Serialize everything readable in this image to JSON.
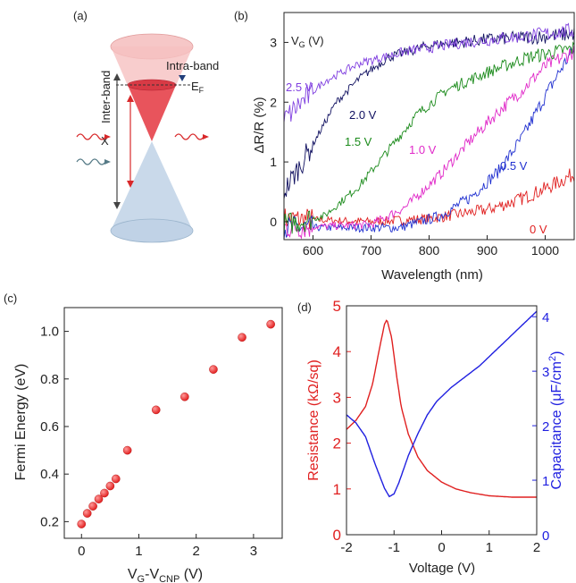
{
  "panels": {
    "a": {
      "label": "(a)",
      "inter_band": "Inter-band",
      "intra_band": "Intra-band",
      "fermi": "E",
      "fermi_sub": "F",
      "x_mark": "X",
      "colors": {
        "upper_cone": "#f4b6b6",
        "filled": "#e8545c",
        "lower_cone": "#c9d9ea",
        "wave_red": "#d8282a",
        "wave_grey": "#557a86"
      }
    },
    "b": {
      "label": "(b)",
      "legend_title": "V",
      "legend_title_sub": "G",
      "legend_title_unit": " (V)"
    },
    "c": {
      "label": "(c)"
    },
    "d": {
      "label": "(d)"
    }
  },
  "chart_data": [
    {
      "type": "line",
      "panel": "b",
      "xlabel": "Wavelength (nm)",
      "ylabel": "ΔR/R (%)",
      "xlim": [
        550,
        1050
      ],
      "ylim": [
        -0.3,
        3.5
      ],
      "xticks": [
        600,
        700,
        800,
        900,
        1000
      ],
      "yticks": [
        0,
        1,
        2,
        3
      ],
      "series": [
        {
          "name": "0 V",
          "color": "#e02020",
          "points": [
            [
              550,
              0.05
            ],
            [
              700,
              0.0
            ],
            [
              800,
              0.05
            ],
            [
              900,
              0.2
            ],
            [
              950,
              0.35
            ],
            [
              1000,
              0.55
            ],
            [
              1050,
              0.8
            ]
          ]
        },
        {
          "name": "0.5 V",
          "color": "#2030d0",
          "points": [
            [
              550,
              -0.1
            ],
            [
              750,
              -0.1
            ],
            [
              820,
              0.1
            ],
            [
              870,
              0.4
            ],
            [
              920,
              0.85
            ],
            [
              960,
              1.4
            ],
            [
              1000,
              2.1
            ],
            [
              1030,
              2.6
            ],
            [
              1050,
              2.9
            ]
          ]
        },
        {
          "name": "1.0 V",
          "color": "#e028c8",
          "points": [
            [
              550,
              -0.1
            ],
            [
              700,
              -0.05
            ],
            [
              760,
              0.25
            ],
            [
              820,
              0.8
            ],
            [
              870,
              1.35
            ],
            [
              920,
              1.85
            ],
            [
              960,
              2.2
            ],
            [
              1000,
              2.6
            ],
            [
              1050,
              2.85
            ]
          ]
        },
        {
          "name": "1.5 V",
          "color": "#1a8a1a",
          "points": [
            [
              550,
              -0.05
            ],
            [
              620,
              0.1
            ],
            [
              680,
              0.6
            ],
            [
              730,
              1.2
            ],
            [
              780,
              1.8
            ],
            [
              830,
              2.2
            ],
            [
              900,
              2.5
            ],
            [
              970,
              2.75
            ],
            [
              1050,
              2.9
            ]
          ]
        },
        {
          "name": "2.0 V",
          "color": "#101060",
          "points": [
            [
              550,
              0.5
            ],
            [
              600,
              1.3
            ],
            [
              640,
              2.0
            ],
            [
              680,
              2.4
            ],
            [
              730,
              2.75
            ],
            [
              800,
              2.95
            ],
            [
              900,
              3.05
            ],
            [
              1000,
              3.1
            ],
            [
              1050,
              3.15
            ]
          ]
        },
        {
          "name": "2.5 V",
          "color": "#8040e0",
          "points": [
            [
              550,
              1.7
            ],
            [
              580,
              2.0
            ],
            [
              620,
              2.35
            ],
            [
              680,
              2.65
            ],
            [
              760,
              2.85
            ],
            [
              860,
              3.0
            ],
            [
              960,
              3.1
            ],
            [
              1050,
              3.2
            ]
          ]
        }
      ]
    },
    {
      "type": "scatter",
      "panel": "c",
      "xlabel": "V",
      "xlabel_sub": "G",
      "xlabel_mid": "-V",
      "xlabel_sub2": "CNP",
      "xlabel_unit": " (V)",
      "ylabel": "Fermi Energy (eV)",
      "xlim": [
        -0.3,
        3.5
      ],
      "ylim": [
        0.13,
        1.1
      ],
      "xticks": [
        0,
        1,
        2,
        3
      ],
      "yticks": [
        0.2,
        0.4,
        0.6,
        0.8,
        1.0
      ],
      "ytick_labels": [
        "0.2",
        "0.4",
        "0.6",
        "0.8",
        "1.0"
      ],
      "x": [
        0.0,
        0.1,
        0.2,
        0.3,
        0.4,
        0.5,
        0.6,
        0.8,
        1.3,
        1.8,
        2.3,
        2.8,
        3.3
      ],
      "y": [
        0.19,
        0.235,
        0.265,
        0.295,
        0.32,
        0.35,
        0.38,
        0.5,
        0.67,
        0.725,
        0.84,
        0.975,
        1.03
      ],
      "color": "#e01818"
    },
    {
      "type": "line",
      "panel": "d",
      "xlabel": "Voltage (V)",
      "xlim": [
        -2,
        2
      ],
      "xticks": [
        -2,
        -1,
        0,
        1,
        2
      ],
      "left_axis": {
        "label": "Resistance (kΩ/sq)",
        "ylim": [
          0,
          5
        ],
        "yticks": [
          0,
          1,
          2,
          3,
          4,
          5
        ],
        "color": "#e02020"
      },
      "right_axis": {
        "label": "Capacitance (μF/cm",
        "label_sup": "2",
        "label_end": ")",
        "ylim": [
          0,
          4.2
        ],
        "yticks": [
          0,
          1,
          2,
          3,
          4
        ],
        "color": "#2020e0"
      },
      "series": [
        {
          "name": "Resistance",
          "axis": "left",
          "color": "#e02020",
          "points": [
            [
              -2,
              2.3
            ],
            [
              -1.8,
              2.5
            ],
            [
              -1.6,
              2.8
            ],
            [
              -1.45,
              3.3
            ],
            [
              -1.3,
              4.1
            ],
            [
              -1.2,
              4.6
            ],
            [
              -1.15,
              4.7
            ],
            [
              -1.05,
              4.3
            ],
            [
              -0.95,
              3.5
            ],
            [
              -0.85,
              2.8
            ],
            [
              -0.7,
              2.2
            ],
            [
              -0.5,
              1.7
            ],
            [
              -0.3,
              1.4
            ],
            [
              0,
              1.15
            ],
            [
              0.3,
              1.0
            ],
            [
              0.6,
              0.92
            ],
            [
              1.0,
              0.85
            ],
            [
              1.5,
              0.82
            ],
            [
              2,
              0.82
            ]
          ]
        },
        {
          "name": "Capacitance",
          "axis": "right",
          "color": "#2020e0",
          "points": [
            [
              -2,
              2.2
            ],
            [
              -1.8,
              2.05
            ],
            [
              -1.6,
              1.8
            ],
            [
              -1.4,
              1.3
            ],
            [
              -1.2,
              0.85
            ],
            [
              -1.1,
              0.7
            ],
            [
              -1.0,
              0.75
            ],
            [
              -0.9,
              0.95
            ],
            [
              -0.7,
              1.45
            ],
            [
              -0.5,
              1.85
            ],
            [
              -0.3,
              2.2
            ],
            [
              -0.1,
              2.45
            ],
            [
              0.2,
              2.7
            ],
            [
              0.5,
              2.9
            ],
            [
              0.8,
              3.1
            ],
            [
              1.1,
              3.35
            ],
            [
              1.4,
              3.6
            ],
            [
              1.7,
              3.85
            ],
            [
              2,
              4.1
            ]
          ]
        }
      ]
    }
  ]
}
